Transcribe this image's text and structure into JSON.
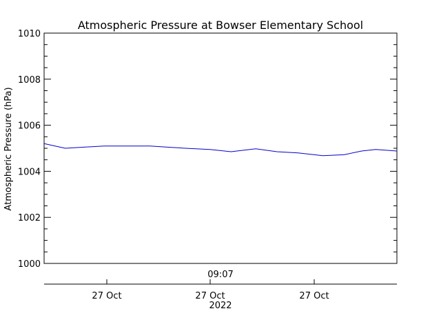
{
  "chart_data": {
    "type": "line",
    "title": "Atmospheric Pressure at Bowser Elementary School",
    "ylabel": "Atmospheric Pressure (hPa)",
    "ylim": [
      1000,
      1010
    ],
    "yticks": [
      "1000",
      "1002",
      "1004",
      "1006",
      "1008",
      "1010"
    ],
    "time_label": "09:07",
    "date_labels": [
      "27 Oct",
      "27 Oct",
      "27 Oct"
    ],
    "year_label": "2022",
    "grid": false,
    "line_color": "#0000cc",
    "x_fraction": [
      0.0,
      0.06,
      0.17,
      0.3,
      0.4,
      0.47,
      0.53,
      0.6,
      0.66,
      0.72,
      0.79,
      0.85,
      0.9,
      0.94,
      1.0
    ],
    "values": [
      1005.2,
      1005.0,
      1005.1,
      1005.1,
      1005.0,
      1004.95,
      1004.85,
      1004.98,
      1004.85,
      1004.8,
      1004.68,
      1004.72,
      1004.88,
      1004.95,
      1004.88
    ]
  }
}
